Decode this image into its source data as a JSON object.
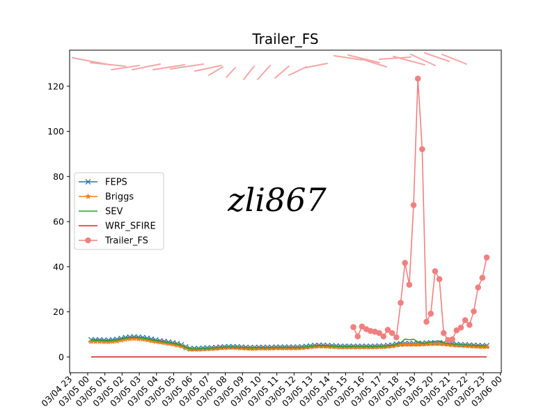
{
  "chart_data": {
    "type": "line",
    "title": "Trailer_FS",
    "xlabel": "",
    "ylabel": "",
    "watermark": "zli867",
    "x_tick_labels": [
      "03/04 23",
      "03/05 00",
      "03/05 01",
      "03/05 02",
      "03/05 03",
      "03/05 04",
      "03/05 05",
      "03/05 06",
      "03/05 07",
      "03/05 08",
      "03/05 09",
      "03/05 10",
      "03/05 11",
      "03/05 12",
      "03/05 13",
      "03/05 14",
      "03/05 15",
      "03/05 16",
      "03/05 17",
      "03/05 18",
      "03/05 19",
      "03/05 20",
      "03/05 21",
      "03/05 22",
      "03/05 23",
      "03/06 00"
    ],
    "y_ticks": [
      0,
      20,
      40,
      60,
      80,
      100,
      120
    ],
    "xlim_hours": [
      -1.05,
      24.05
    ],
    "ylim": [
      -7,
      136
    ],
    "grid": false,
    "legend_position": "center-left",
    "series": [
      {
        "name": "FEPS",
        "color": "#1f77b4",
        "marker": "x",
        "x": [
          0.2,
          0.45,
          0.7,
          0.95,
          1.2,
          1.45,
          1.7,
          1.95,
          2.2,
          2.45,
          2.7,
          2.95,
          3.2,
          3.45,
          3.7,
          3.95,
          4.2,
          4.45,
          4.7,
          4.95,
          5.2,
          5.45,
          5.7,
          5.95,
          6.2,
          6.45,
          6.7,
          6.95,
          7.2,
          7.45,
          7.7,
          7.95,
          8.2,
          8.45,
          8.7,
          8.95,
          9.2,
          9.45,
          9.7,
          9.95,
          10.2,
          10.45,
          10.7,
          10.95,
          11.2,
          11.45,
          11.7,
          11.95,
          12.2,
          12.45,
          12.7,
          12.95,
          13.2,
          13.45,
          13.7,
          13.95,
          14.2,
          14.45,
          14.7,
          14.95,
          15.2,
          15.45,
          15.7,
          15.95,
          16.2,
          16.45,
          16.7,
          16.95,
          17.2,
          17.45,
          17.7,
          17.95,
          18.2,
          18.45,
          18.7,
          18.95,
          19.2,
          19.45,
          19.7,
          19.95,
          20.2,
          20.45,
          20.7,
          20.95,
          21.2,
          21.45,
          21.7,
          21.95,
          22.2,
          22.45,
          22.7,
          22.95,
          23.2
        ],
        "y": [
          7.6,
          7.6,
          7.6,
          7.5,
          7.4,
          7.6,
          7.8,
          8.2,
          8.6,
          8.8,
          8.9,
          8.8,
          8.6,
          8.3,
          7.9,
          7.5,
          7.2,
          6.9,
          6.6,
          6.3,
          5.9,
          5.4,
          4.5,
          3.8,
          3.8,
          3.8,
          3.9,
          4.0,
          4.1,
          4.2,
          4.4,
          4.5,
          4.6,
          4.6,
          4.5,
          4.4,
          4.3,
          4.2,
          4.2,
          4.3,
          4.3,
          4.3,
          4.3,
          4.4,
          4.4,
          4.4,
          4.4,
          4.4,
          4.4,
          4.5,
          4.7,
          4.9,
          5.1,
          5.2,
          5.2,
          5.1,
          5.0,
          4.9,
          4.8,
          4.8,
          4.8,
          4.8,
          4.8,
          4.8,
          4.8,
          4.8,
          4.8,
          4.9,
          4.9,
          5.1,
          5.3,
          5.7,
          5.9,
          6.0,
          6.0,
          6.0,
          6.0,
          6.1,
          6.2,
          6.3,
          6.3,
          6.3,
          6.2,
          6.0,
          5.8,
          5.6,
          5.5,
          5.4,
          5.3,
          5.2,
          5.1,
          5.0,
          5.0
        ]
      },
      {
        "name": "Briggs",
        "color": "#ff7f0e",
        "marker": "star",
        "x": [
          0.2,
          0.45,
          0.7,
          0.95,
          1.2,
          1.45,
          1.7,
          1.95,
          2.2,
          2.45,
          2.7,
          2.95,
          3.2,
          3.45,
          3.7,
          3.95,
          4.2,
          4.45,
          4.7,
          4.95,
          5.2,
          5.45,
          5.7,
          5.95,
          6.2,
          6.45,
          6.7,
          6.95,
          7.2,
          7.45,
          7.7,
          7.95,
          8.2,
          8.45,
          8.7,
          8.95,
          9.2,
          9.45,
          9.7,
          9.95,
          10.2,
          10.45,
          10.7,
          10.95,
          11.2,
          11.45,
          11.7,
          11.95,
          12.2,
          12.45,
          12.7,
          12.95,
          13.2,
          13.45,
          13.7,
          13.95,
          14.2,
          14.45,
          14.7,
          14.95,
          15.2,
          15.45,
          15.7,
          15.95,
          16.2,
          16.45,
          16.7,
          16.95,
          17.2,
          17.45,
          17.7,
          17.95,
          18.2,
          18.45,
          18.7,
          18.95,
          19.2,
          19.45,
          19.7,
          19.95,
          20.2,
          20.45,
          20.7,
          20.95,
          21.2,
          21.45,
          21.7,
          21.95,
          22.2,
          22.45,
          22.7,
          22.95,
          23.2
        ],
        "y": [
          6.8,
          6.8,
          6.8,
          6.7,
          6.7,
          6.8,
          7.0,
          7.4,
          7.8,
          8.0,
          8.1,
          8.0,
          7.8,
          7.5,
          7.1,
          6.8,
          6.5,
          6.2,
          5.9,
          5.6,
          5.2,
          4.7,
          3.9,
          3.3,
          3.3,
          3.3,
          3.4,
          3.5,
          3.6,
          3.7,
          3.9,
          4.0,
          4.1,
          4.1,
          4.0,
          3.9,
          3.8,
          3.7,
          3.7,
          3.8,
          3.8,
          3.8,
          3.8,
          3.9,
          3.9,
          3.9,
          3.9,
          3.9,
          3.9,
          4.0,
          4.2,
          4.4,
          4.6,
          4.7,
          4.7,
          4.6,
          4.5,
          4.4,
          4.3,
          4.3,
          4.3,
          4.3,
          4.3,
          4.3,
          4.3,
          4.3,
          4.3,
          4.4,
          4.4,
          4.6,
          4.8,
          5.2,
          5.4,
          5.5,
          5.5,
          5.5,
          5.5,
          5.6,
          5.7,
          5.8,
          5.8,
          5.8,
          5.7,
          5.5,
          5.3,
          5.1,
          5.0,
          4.9,
          4.8,
          4.7,
          4.6,
          4.5,
          4.5
        ]
      },
      {
        "name": "SEV",
        "color": "#2ca02c",
        "marker": "none",
        "x": [
          0.2,
          0.45,
          0.7,
          0.95,
          1.2,
          1.45,
          1.7,
          1.95,
          2.2,
          2.45,
          2.7,
          2.95,
          3.2,
          3.45,
          3.7,
          3.95,
          4.2,
          4.45,
          4.7,
          4.95,
          5.2,
          5.45,
          5.7,
          5.95,
          6.2,
          6.45,
          6.7,
          6.95,
          7.2,
          7.45,
          7.7,
          7.95,
          8.2,
          8.45,
          8.7,
          8.95,
          9.2,
          9.45,
          9.7,
          9.95,
          10.2,
          10.45,
          10.7,
          10.95,
          11.2,
          11.45,
          11.7,
          11.95,
          12.2,
          12.45,
          12.7,
          12.95,
          13.2,
          13.45,
          13.7,
          13.95,
          14.2,
          14.45,
          14.7,
          14.95,
          15.2,
          15.45,
          15.7,
          15.95,
          16.2,
          16.45,
          16.7,
          16.95,
          17.2,
          17.45,
          17.7,
          17.95,
          18.2,
          18.45,
          18.7,
          18.95,
          19.2,
          19.45,
          19.7,
          19.95,
          20.2,
          20.45,
          20.7,
          20.95,
          21.2,
          21.45,
          21.7,
          21.95,
          22.2,
          22.45,
          22.7,
          22.95,
          23.2
        ],
        "y": [
          7.3,
          7.3,
          7.3,
          7.2,
          7.1,
          7.3,
          7.5,
          7.9,
          8.3,
          8.5,
          8.6,
          8.5,
          8.3,
          8.0,
          7.6,
          7.2,
          6.9,
          6.6,
          6.3,
          6.0,
          5.6,
          5.1,
          4.2,
          3.6,
          3.6,
          3.6,
          3.7,
          3.8,
          3.9,
          4.0,
          4.2,
          4.3,
          4.4,
          4.4,
          4.3,
          4.2,
          4.1,
          4.0,
          4.0,
          4.1,
          4.1,
          4.1,
          4.1,
          4.2,
          4.2,
          4.2,
          4.2,
          4.2,
          4.2,
          4.3,
          4.5,
          4.7,
          4.9,
          5.0,
          5.0,
          4.9,
          4.8,
          4.7,
          4.6,
          4.6,
          4.6,
          4.6,
          4.6,
          4.6,
          4.6,
          4.6,
          4.6,
          4.7,
          4.7,
          4.9,
          5.1,
          5.5,
          6.3,
          7.9,
          7.6,
          7.8,
          6.7,
          6.0,
          6.1,
          6.7,
          6.9,
          7.1,
          6.2,
          5.9,
          5.7,
          5.6,
          5.4,
          5.3,
          5.2,
          5.1,
          5.0,
          4.9,
          4.9
        ]
      },
      {
        "name": "WRF_SFIRE",
        "color": "#d62728",
        "marker": "none",
        "x": [
          0.2,
          23.2
        ],
        "y": [
          0,
          0
        ]
      },
      {
        "name": "Trailer_FS",
        "color": "#f08080",
        "marker": "circle",
        "x": [
          15.45,
          15.7,
          15.95,
          16.2,
          16.45,
          16.7,
          16.95,
          17.2,
          17.45,
          17.7,
          17.95,
          18.2,
          18.45,
          18.7,
          18.95,
          19.2,
          19.45,
          19.7,
          19.95,
          20.2,
          20.45,
          20.7,
          20.95,
          21.2,
          21.45,
          21.7,
          21.95,
          22.2,
          22.45,
          22.7,
          22.95,
          23.2
        ],
        "y": [
          13.2,
          9.1,
          13.5,
          12.3,
          11.5,
          11.2,
          10.6,
          9.1,
          12.0,
          10.6,
          8.7,
          24.0,
          41.7,
          32.0,
          67.3,
          123.4,
          92.1,
          15.6,
          19.2,
          38.0,
          34.5,
          10.6,
          7.5,
          7.8,
          11.8,
          13.0,
          16.3,
          14.2,
          20.2,
          30.8,
          35.1,
          44.1
        ]
      }
    ],
    "wind_arrows": {
      "color": "#f4a6a6",
      "note_values_visible": false
    }
  }
}
